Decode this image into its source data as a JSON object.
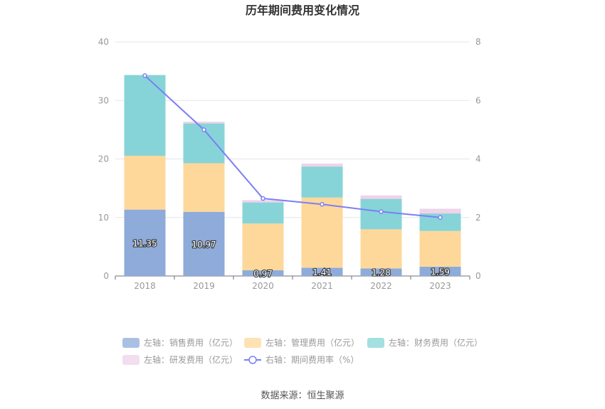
{
  "chart_data": {
    "type": "bar",
    "title": "历年期间费用变化情况",
    "categories": [
      "2018",
      "2019",
      "2020",
      "2021",
      "2022",
      "2023"
    ],
    "series": [
      {
        "name": "左轴：销售费用（亿元）",
        "axis": "left",
        "kind": "bar",
        "color": "#8eabd9",
        "values": [
          11.35,
          10.97,
          0.97,
          1.41,
          1.28,
          1.59
        ]
      },
      {
        "name": "左轴：管理费用（亿元）",
        "axis": "left",
        "kind": "bar",
        "color": "#fdd89a",
        "values": [
          9.2,
          8.3,
          8.0,
          12.0,
          6.7,
          6.1
        ]
      },
      {
        "name": "左轴：财务费用（亿元）",
        "axis": "left",
        "kind": "bar",
        "color": "#86d4d8",
        "values": [
          13.8,
          6.8,
          3.6,
          5.3,
          5.2,
          3.0
        ]
      },
      {
        "name": "左轴：研发费用（亿元）",
        "axis": "left",
        "kind": "bar",
        "color": "#eed3e9",
        "values": [
          0.0,
          0.3,
          0.4,
          0.5,
          0.6,
          0.8
        ]
      },
      {
        "name": "右轴：期间费用率（%）",
        "axis": "right",
        "kind": "line",
        "color": "#7b7ff5",
        "values": [
          6.85,
          5.0,
          2.65,
          2.45,
          2.2,
          2.0
        ]
      }
    ],
    "left_axis": {
      "min": 0,
      "max": 40,
      "ticks": [
        0,
        10,
        20,
        30,
        40
      ]
    },
    "right_axis": {
      "min": 0,
      "max": 8,
      "ticks": [
        0,
        2,
        4,
        6,
        8
      ]
    },
    "data_labels": [
      "11.35",
      "10.97",
      "0.97",
      "1.41",
      "1.28",
      "1.59"
    ],
    "grid": true,
    "legend_position": "bottom"
  },
  "footer": {
    "source": "数据来源：恒生聚源"
  }
}
